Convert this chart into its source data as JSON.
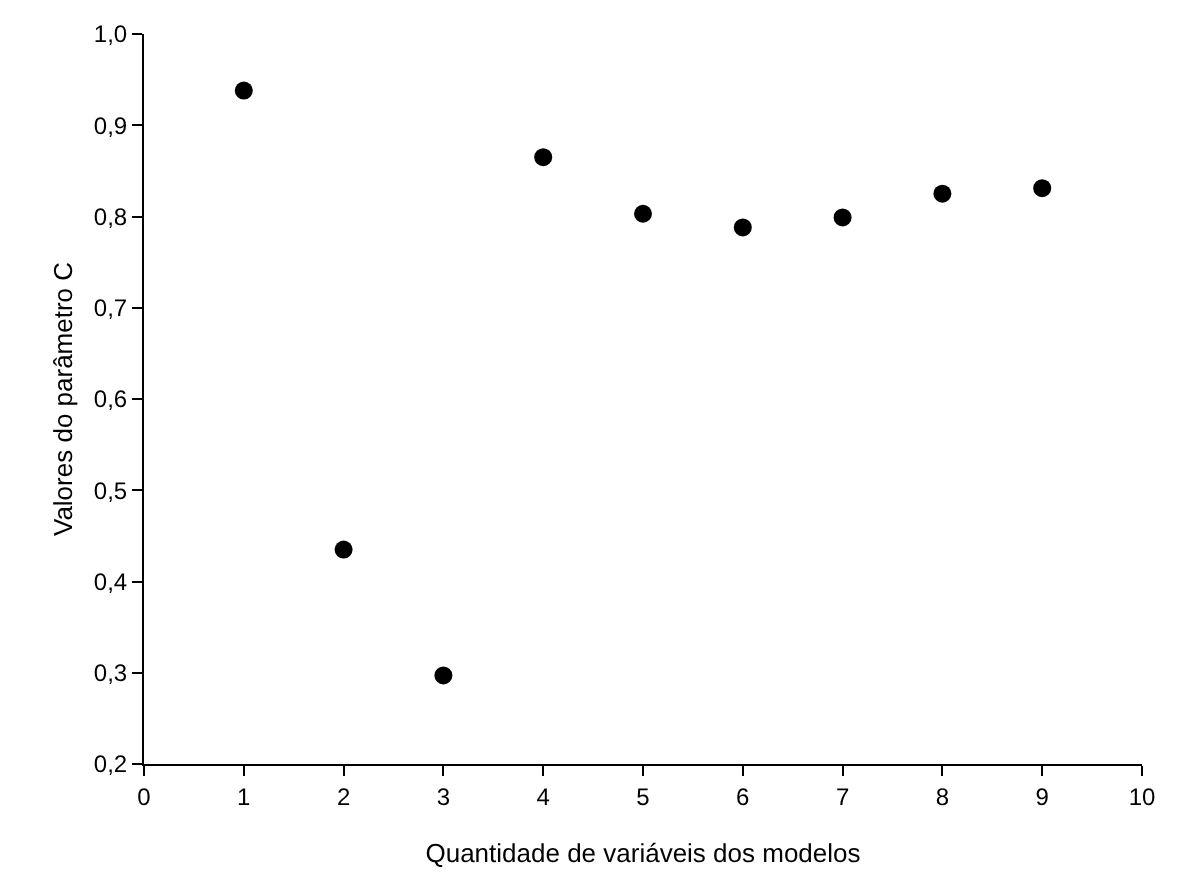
{
  "chart_data": {
    "type": "scatter",
    "xlabel": "Quantidade de variáveis dos modelos",
    "ylabel": "Valores do parâmetro C",
    "x": [
      1,
      2,
      3,
      4,
      5,
      6,
      7,
      8,
      9
    ],
    "series": [
      {
        "color": "#000000",
        "values": [
          0.938,
          0.435,
          0.297,
          0.865,
          0.803,
          0.788,
          0.799,
          0.825,
          0.831
        ]
      }
    ],
    "marker": "circle",
    "grid": false,
    "xlim": [
      0,
      10
    ],
    "xticks": [
      0,
      1,
      2,
      3,
      4,
      5,
      6,
      7,
      8,
      9,
      10
    ],
    "ylim": [
      0.2,
      1.0
    ],
    "yticks": [
      {
        "value": 0.2,
        "label": "0,2"
      },
      {
        "value": 0.3,
        "label": "0,3"
      },
      {
        "value": 0.4,
        "label": "0,4"
      },
      {
        "value": 0.5,
        "label": "0,5"
      },
      {
        "value": 0.6,
        "label": "0,6"
      },
      {
        "value": 0.7,
        "label": "0,7"
      },
      {
        "value": 0.8,
        "label": "0,8"
      },
      {
        "value": 0.9,
        "label": "0,9"
      },
      {
        "value": 1.0,
        "label": "1,0"
      }
    ]
  }
}
